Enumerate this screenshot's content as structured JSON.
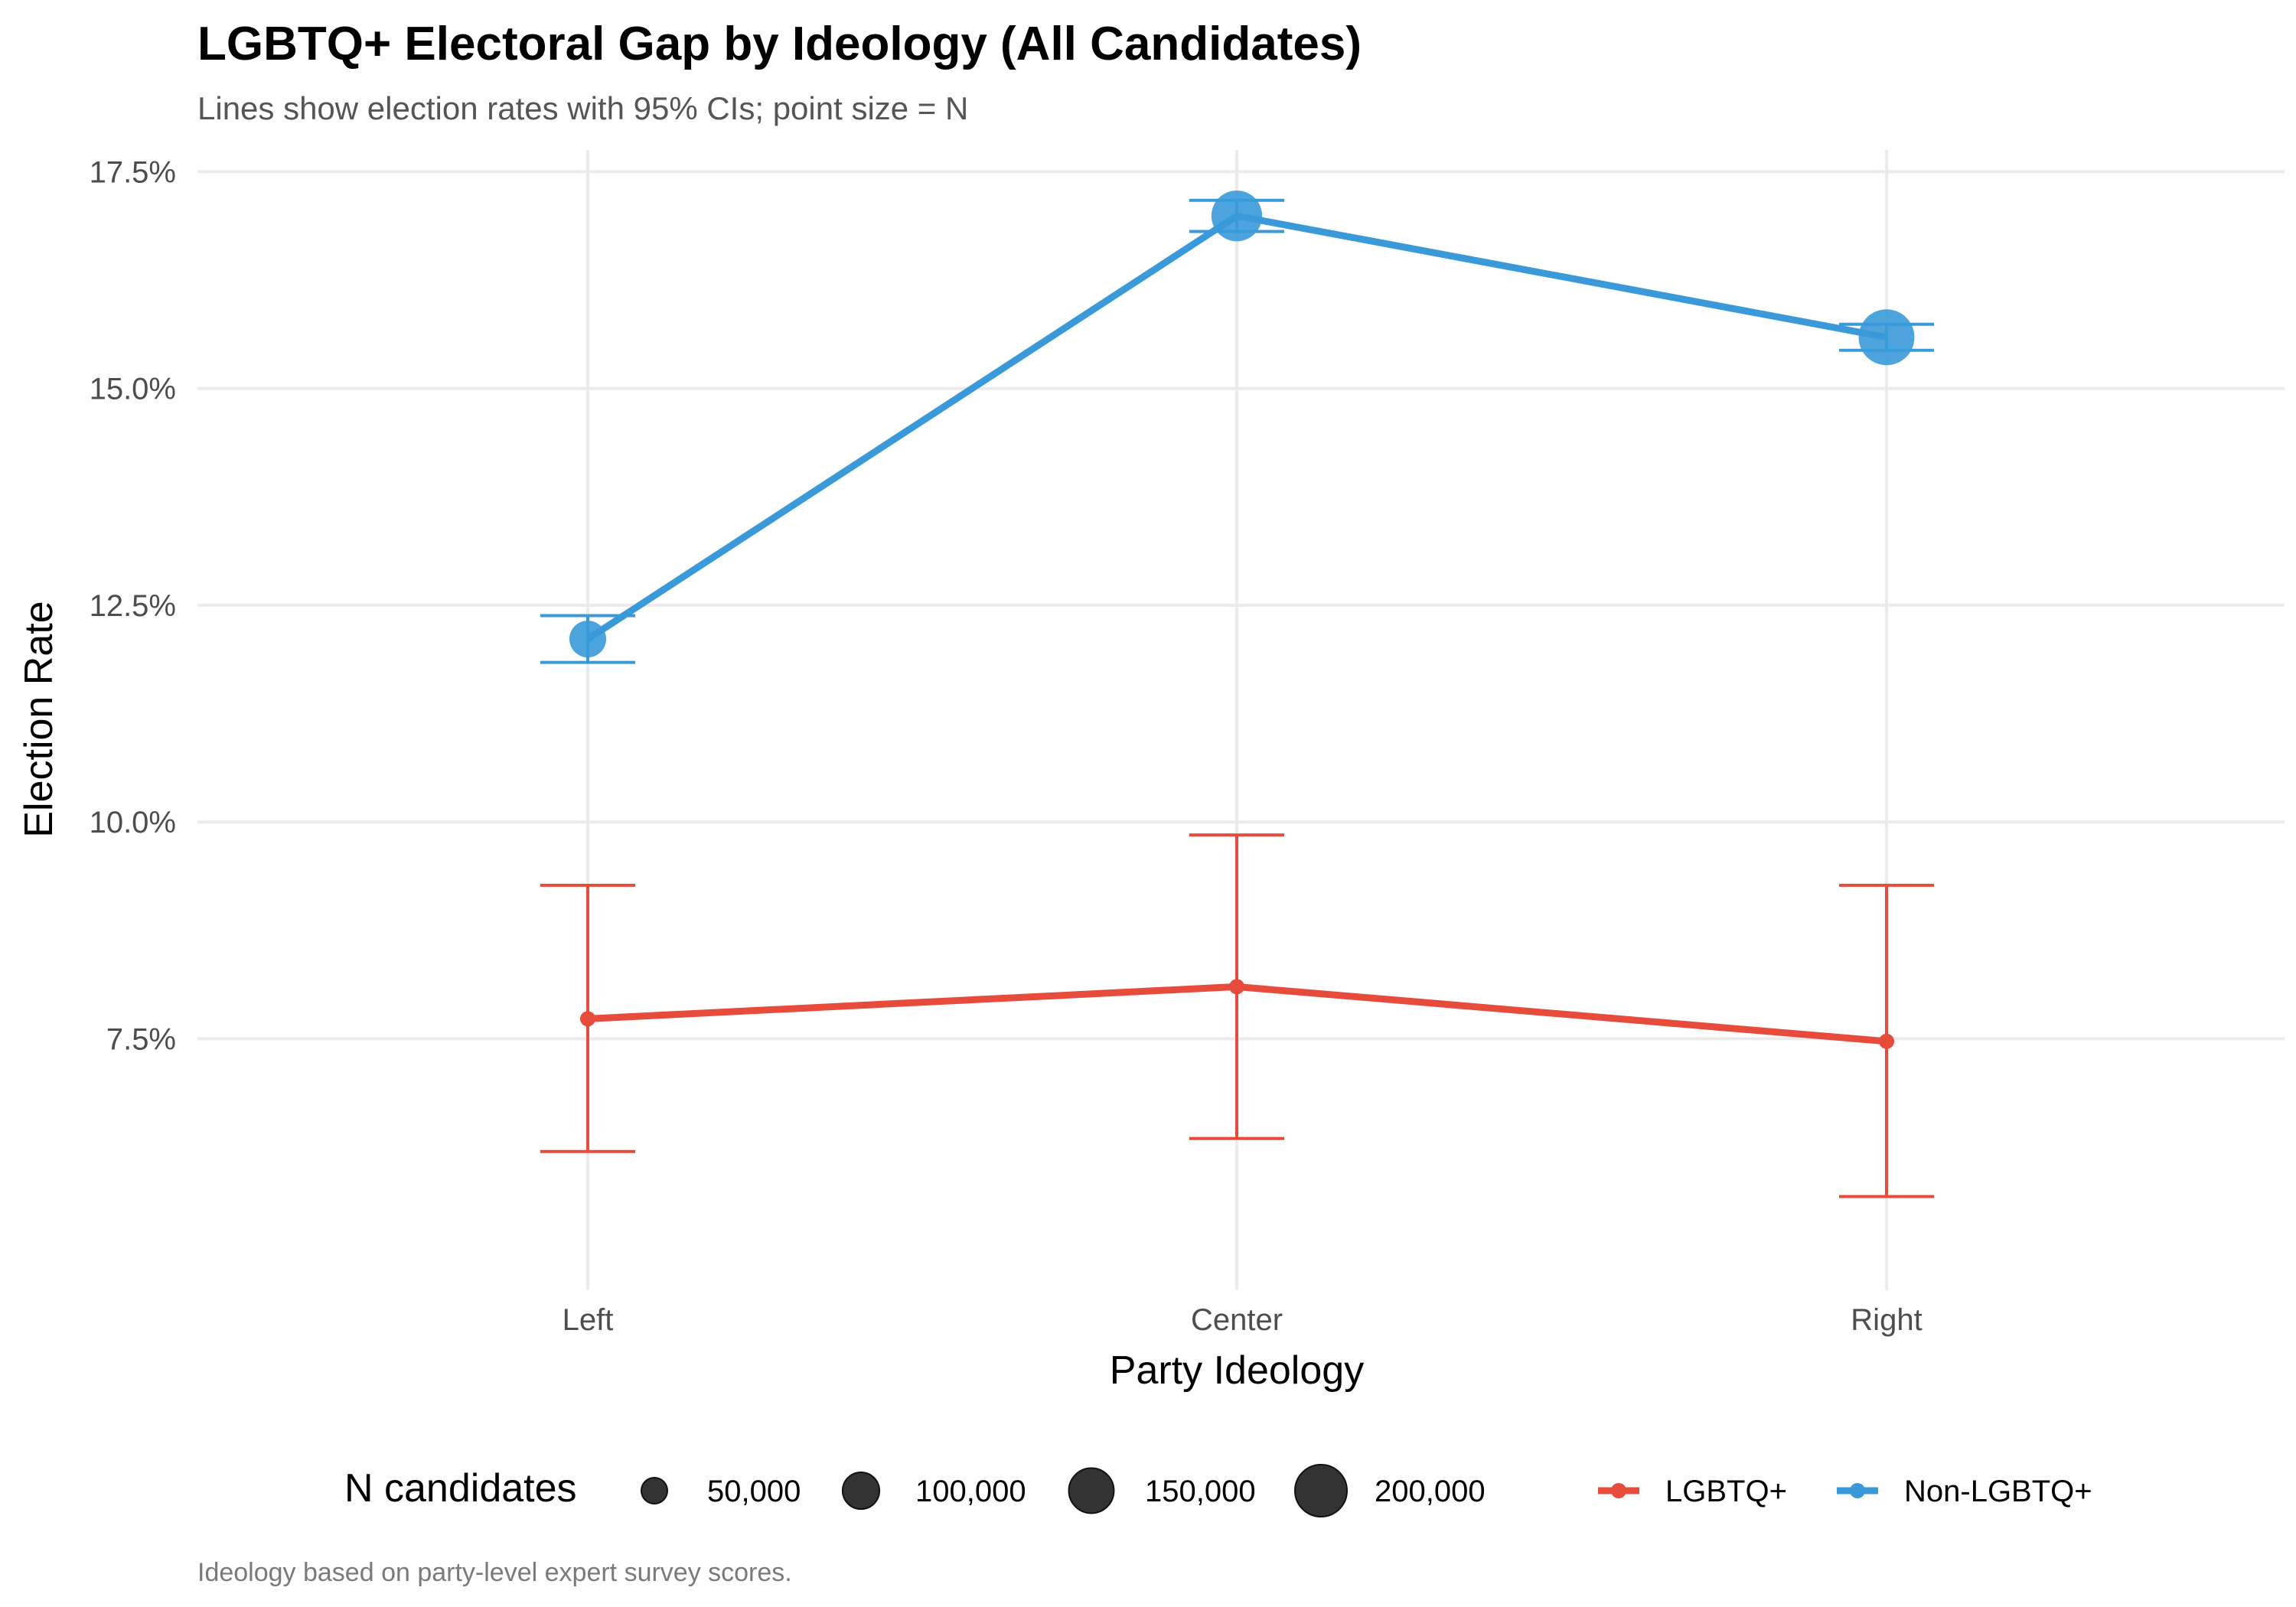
{
  "chart_data": {
    "type": "line",
    "title": "LGBTQ+ Electoral Gap by Ideology (All Candidates)",
    "subtitle": "Lines show election rates with 95% CIs; point size = N",
    "caption": "Ideology based on party-level expert survey scores.",
    "xlabel": "Party Ideology",
    "ylabel": "Election Rate",
    "categories": [
      "Left",
      "Center",
      "Right"
    ],
    "ylim": [
      4.6,
      17.75
    ],
    "yticks": [
      {
        "value": 7.5,
        "label": "7.5%"
      },
      {
        "value": 10.0,
        "label": "10.0%"
      },
      {
        "value": 12.5,
        "label": "12.5%"
      },
      {
        "value": 15.0,
        "label": "15.0%"
      },
      {
        "value": 17.5,
        "label": "17.5%"
      }
    ],
    "grid": true,
    "legend_position": "bottom",
    "series": [
      {
        "name": "LGBTQ+",
        "color": "#e64b3c",
        "values": [
          7.73,
          8.1,
          7.47
        ],
        "ci_low": [
          6.2,
          6.35,
          5.68
        ],
        "ci_high": [
          9.27,
          9.85,
          9.27
        ],
        "n": [
          3000,
          3000,
          3000
        ]
      },
      {
        "name": "Non-LGBTQ+",
        "color": "#3a9ad9",
        "values": [
          12.11,
          16.99,
          15.59
        ],
        "ci_low": [
          11.84,
          16.81,
          15.44
        ],
        "ci_high": [
          12.38,
          17.17,
          15.74
        ],
        "n": [
          100000,
          190000,
          230000
        ]
      }
    ],
    "size_legend": {
      "title": "N candidates",
      "breaks": [
        {
          "value": 50000,
          "label": "50,000"
        },
        {
          "value": 100000,
          "label": "100,000"
        },
        {
          "value": 150000,
          "label": "150,000"
        },
        {
          "value": 200000,
          "label": "200,000"
        }
      ]
    }
  }
}
